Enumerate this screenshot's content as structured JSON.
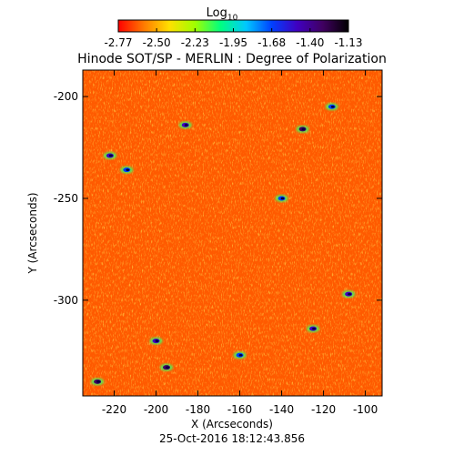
{
  "chart_data": {
    "type": "heatmap",
    "title": "Hinode SOT/SP - MERLIN : Degree of Polarization",
    "xlabel": "X (Arcseconds)",
    "ylabel": "Y (Arcseconds)",
    "timestamp": "25-Oct-2016 18:12:43.856",
    "colorbar": {
      "label_main": "Log",
      "label_sub": "10",
      "ticks": [
        "-2.77",
        "-2.50",
        "-2.23",
        "-1.95",
        "-1.68",
        "-1.40",
        "-1.13"
      ],
      "range": [
        -2.77,
        -1.13
      ],
      "colormap": [
        "#ff0000",
        "#ff7a00",
        "#ffe000",
        "#a0ff00",
        "#00ff80",
        "#00c8ff",
        "#0040ff",
        "#4000c0",
        "#400060",
        "#000000"
      ]
    },
    "xlim": [
      -235,
      -92
    ],
    "ylim": [
      -347,
      -187
    ],
    "xticks": [
      -220,
      -200,
      -180,
      -160,
      -140,
      -120,
      -100
    ],
    "xtick_labels": [
      "-220",
      "-200",
      "-180",
      "-160",
      "-140",
      "-120",
      "-100"
    ],
    "yticks": [
      -200,
      -250,
      -300
    ],
    "ytick_labels": [
      "-200",
      "-250",
      "-300"
    ],
    "field": {
      "background_level": -2.6,
      "patches": [
        {
          "x": -222,
          "y": -229,
          "level": -1.5
        },
        {
          "x": -214,
          "y": -236,
          "level": -1.6
        },
        {
          "x": -130,
          "y": -216,
          "level": -1.4
        },
        {
          "x": -116,
          "y": -205,
          "level": -1.6
        },
        {
          "x": -200,
          "y": -320,
          "level": -1.5
        },
        {
          "x": -195,
          "y": -333,
          "level": -1.3
        },
        {
          "x": -228,
          "y": -340,
          "level": -1.4
        },
        {
          "x": -140,
          "y": -250,
          "level": -1.6
        },
        {
          "x": -108,
          "y": -297,
          "level": -1.5
        },
        {
          "x": -160,
          "y": -327,
          "level": -1.7
        },
        {
          "x": -186,
          "y": -214,
          "level": -1.5
        },
        {
          "x": -125,
          "y": -314,
          "level": -1.5
        }
      ]
    }
  }
}
